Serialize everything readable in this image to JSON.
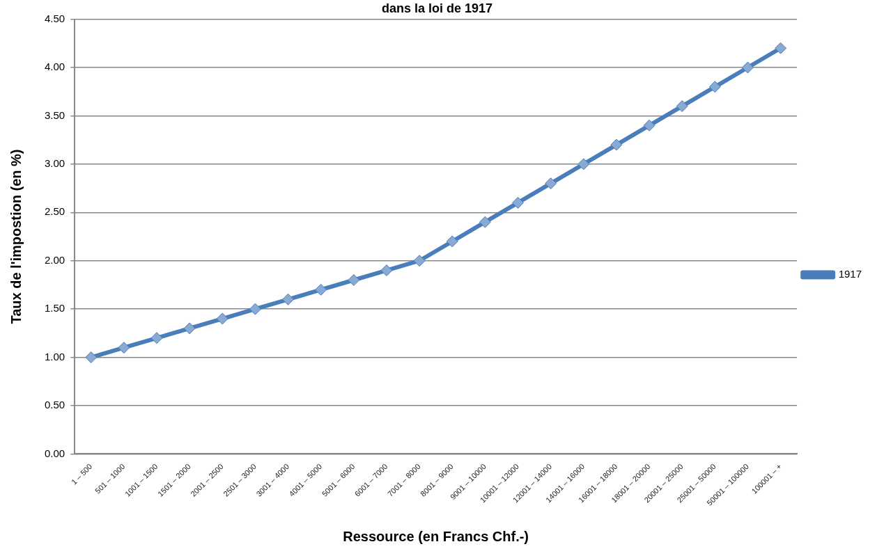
{
  "chart_data": {
    "type": "line",
    "title": "dans la loi de 1917",
    "xlabel": "Ressource (en Francs Chf.-)",
    "ylabel": "Taux de l'impostion (en %)",
    "categories": [
      "1 – 500",
      "501 – 1000",
      "1001 – 1500",
      "1501 – 2000",
      "2001 – 2500",
      "2501 – 3000",
      "3001 – 4000",
      "4001 – 5000",
      "5001 – 6000",
      "6001 – 7000",
      "7001 – 8000",
      "8001 – 9000",
      "9001 – 10000",
      "10001 – 12000",
      "12001 – 14000",
      "14001 – 16000",
      "16001 – 18000",
      "18001 – 20000",
      "20001 – 25000",
      "25001 – 50000",
      "50001 – 100000",
      "100001 – +"
    ],
    "series": [
      {
        "name": "1917",
        "color": "#4a7ebb",
        "values": [
          1.0,
          1.1,
          1.2,
          1.3,
          1.4,
          1.5,
          1.6,
          1.7,
          1.8,
          1.9,
          2.0,
          2.2,
          2.4,
          2.6,
          2.8,
          3.0,
          3.2,
          3.4,
          3.6,
          3.8,
          4.0,
          4.2
        ]
      }
    ],
    "ylim": [
      0,
      4.5
    ],
    "yticks": [
      {
        "value": 0,
        "label": "0.00"
      },
      {
        "value": 0.5,
        "label": "0.50"
      },
      {
        "value": 1,
        "label": "1.00"
      },
      {
        "value": 1.5,
        "label": "1.50"
      },
      {
        "value": 2,
        "label": "2.00"
      },
      {
        "value": 2.5,
        "label": "2.50"
      },
      {
        "value": 3,
        "label": "3.00"
      },
      {
        "value": 3.5,
        "label": "3.50"
      },
      {
        "value": 4,
        "label": "4.00"
      },
      {
        "value": 4.5,
        "label": "4.50"
      }
    ],
    "grid": "y",
    "legend": "right",
    "marker": "diamond",
    "line_style": "solid"
  }
}
